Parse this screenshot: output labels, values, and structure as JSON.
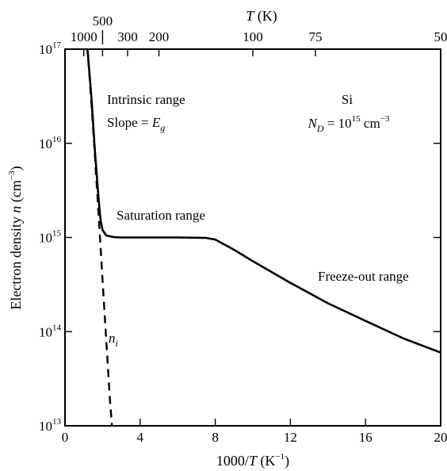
{
  "chart_data": {
    "type": "line",
    "xlabel": {
      "text": "1000/",
      "var": "T",
      "unit_open": " (K",
      "unit_exp": "−1",
      "unit_close": ")"
    },
    "ylabel": {
      "text": "Electron density ",
      "var": "n",
      "unit_open": " (cm",
      "unit_exp": "−3",
      "unit_close": ")"
    },
    "top_axis": {
      "title_var": "T",
      "title_unit": " (K)",
      "ticks": [
        {
          "label": "1000",
          "value": 1000
        },
        {
          "label": "500",
          "value": 500
        },
        {
          "label": "300",
          "value": 300
        },
        {
          "label": "200",
          "value": 200
        },
        {
          "label": "100",
          "value": 100
        },
        {
          "label": "75",
          "value": 75
        },
        {
          "label": "50",
          "value": 50
        }
      ]
    },
    "xlim": [
      0,
      20
    ],
    "ylim_log10": [
      13,
      17
    ],
    "y_scale": "log",
    "x_ticks": [
      {
        "value": 0,
        "label": "0"
      },
      {
        "value": 4,
        "label": "4"
      },
      {
        "value": 8,
        "label": "8"
      },
      {
        "value": 12,
        "label": "12"
      },
      {
        "value": 16,
        "label": "16"
      },
      {
        "value": 20,
        "label": "20"
      }
    ],
    "y_ticks": [
      {
        "value": 10000000000000.0,
        "base": "10",
        "exp": "13"
      },
      {
        "value": 100000000000000.0,
        "base": "10",
        "exp": "14"
      },
      {
        "value": 1000000000000000.0,
        "base": "10",
        "exp": "15"
      },
      {
        "value": 1e+16,
        "base": "10",
        "exp": "16"
      },
      {
        "value": 1e+17,
        "base": "10",
        "exp": "17"
      }
    ],
    "series": [
      {
        "key": "n",
        "style": "solid",
        "x": [
          1.2,
          1.4,
          1.6,
          1.8,
          1.9,
          2.0,
          2.2,
          2.6,
          3.0,
          4.0,
          6.0,
          7.5,
          8.0,
          9.0,
          10.0,
          12.0,
          14.0,
          16.0,
          18.0,
          20.0
        ],
        "y": [
          1e+17,
          3.2e+16,
          8000000000000000.0,
          2400000000000000.0,
          1500000000000000.0,
          1200000000000000.0,
          1050000000000000.0,
          1010000000000000.0,
          1000000000000000.0,
          1000000000000000.0,
          1000000000000000.0,
          990000000000000.0,
          950000000000000.0,
          740000000000000.0,
          560000000000000.0,
          330000000000000.0,
          200000000000000.0,
          130000000000000.0,
          85000000000000.0,
          60000000000000.0
        ]
      },
      {
        "key": "n_i",
        "style": "dashed",
        "x": [
          1.0,
          1.2,
          1.4,
          1.6,
          1.8,
          2.0,
          2.2,
          2.4,
          2.5
        ],
        "y": [
          4e+17,
          1e+17,
          2.8e+16,
          7000000000000000.0,
          1600000000000000.0,
          350000000000000.0,
          80000000000000.0,
          18000000000000.0,
          10000000000000.0
        ]
      }
    ],
    "annotations": {
      "intrinsic": "Intrinsic range",
      "slope_prefix": "Slope = ",
      "slope_var": "E",
      "slope_sub": "g",
      "saturation": "Saturation range",
      "freezeout": "Freeze-out range",
      "material": "Si",
      "nd_var": "N",
      "nd_sub": "D",
      "nd_eq": " = 10",
      "nd_exp": "15",
      "nd_unit": " cm",
      "nd_unit_exp": "−3",
      "ni_var": "n",
      "ni_sub": "i"
    }
  }
}
